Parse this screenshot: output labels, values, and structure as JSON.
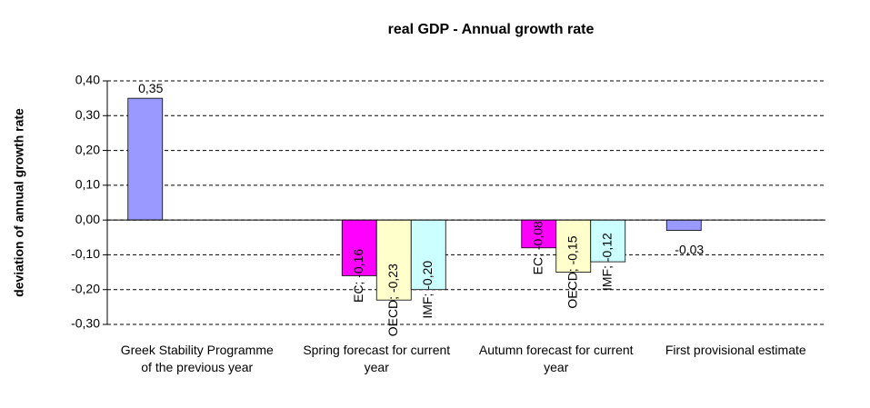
{
  "chart_data": {
    "type": "bar",
    "title": "real GDP - Annual growth rate",
    "y_label": "deviation of annual growth rate",
    "categories": [
      "Greek Stability Programme of the previous year",
      "Spring forecast for current year",
      "Autumn forecast for current year",
      "First provisional estimate"
    ],
    "series": [
      {
        "color": "#9999ff",
        "values": [
          0.35,
          null,
          null,
          -0.03
        ],
        "value_labels": [
          "0,35",
          null,
          null,
          "-0,03"
        ]
      },
      {
        "name": "EC",
        "color": "#ff00ff",
        "values": [
          null,
          -0.16,
          -0.08,
          null
        ],
        "value_labels": [
          null,
          "EC; -0,16",
          "EC; -0,08",
          null
        ]
      },
      {
        "name": "OECD",
        "color": "#ffffcc",
        "values": [
          null,
          -0.23,
          -0.15,
          null
        ],
        "value_labels": [
          null,
          "OECD; -0,23",
          "OECD; -0,15",
          null
        ]
      },
      {
        "name": "IMF",
        "color": "#ccffff",
        "values": [
          null,
          -0.2,
          -0.12,
          null
        ],
        "value_labels": [
          null,
          "IMF; -0,20",
          "IMF; -0,12",
          null
        ]
      }
    ],
    "ylim": [
      -0.3,
      0.4
    ],
    "yticks": [
      {
        "value": -0.3,
        "label": "-0,30"
      },
      {
        "value": -0.2,
        "label": "-0,20"
      },
      {
        "value": -0.1,
        "label": "-0,10"
      },
      {
        "value": 0,
        "label": "0,00"
      },
      {
        "value": 0.1,
        "label": "0,10"
      },
      {
        "value": 0.2,
        "label": "0,20"
      },
      {
        "value": 0.3,
        "label": "0,30"
      },
      {
        "value": 0.4,
        "label": "0,40"
      }
    ],
    "grid": true
  }
}
